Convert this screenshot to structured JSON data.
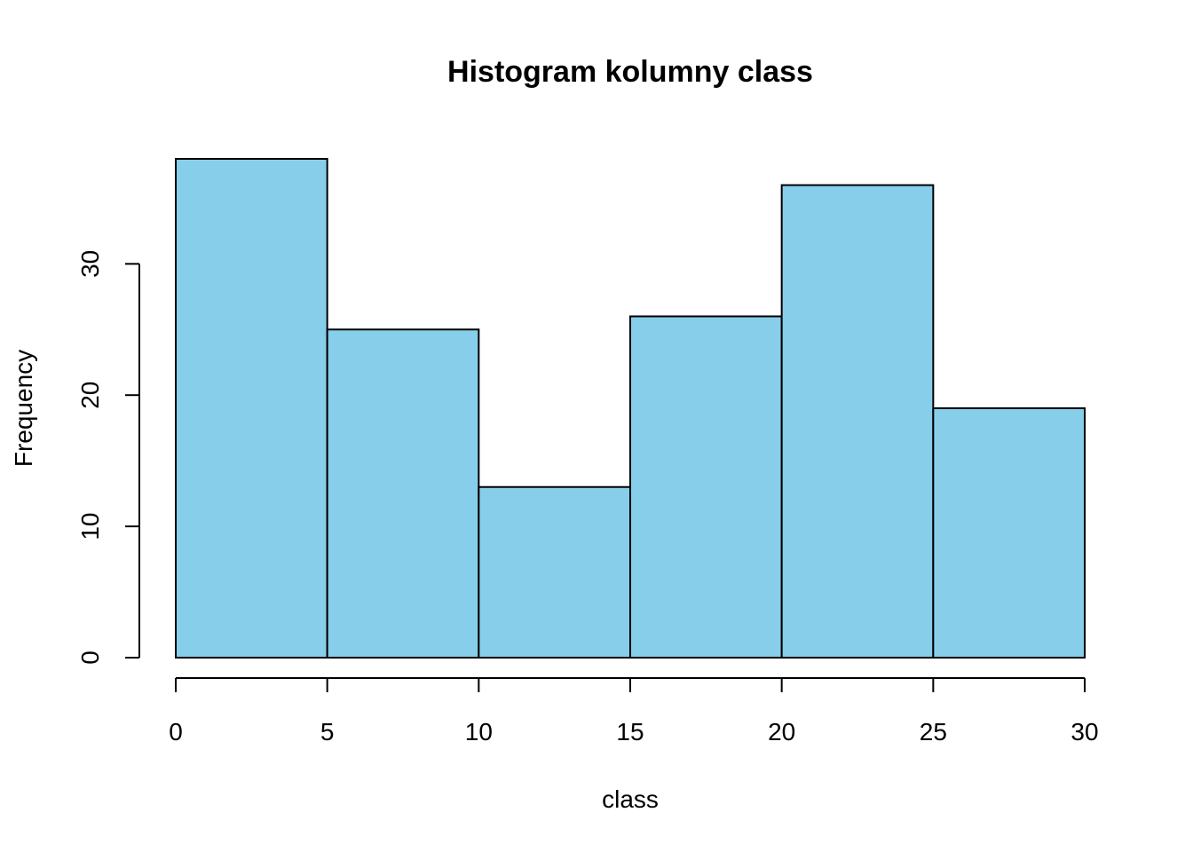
{
  "chart_data": {
    "type": "bar",
    "title": "Histogram kolumny class",
    "xlabel": "class",
    "ylabel": "Frequency",
    "bins": [
      {
        "from": 0,
        "to": 5,
        "count": 38
      },
      {
        "from": 5,
        "to": 10,
        "count": 25
      },
      {
        "from": 10,
        "to": 15,
        "count": 13
      },
      {
        "from": 15,
        "to": 20,
        "count": 26
      },
      {
        "from": 20,
        "to": 25,
        "count": 36
      },
      {
        "from": 25,
        "to": 30,
        "count": 19
      }
    ],
    "xlim": [
      0,
      30
    ],
    "ylim": [
      0,
      38
    ],
    "x_ticks": [
      "0",
      "5",
      "10",
      "15",
      "20",
      "25",
      "30"
    ],
    "y_ticks": [
      "0",
      "10",
      "20",
      "30"
    ],
    "bar_color": "#87CEEB",
    "grid": false,
    "legend": "none"
  }
}
